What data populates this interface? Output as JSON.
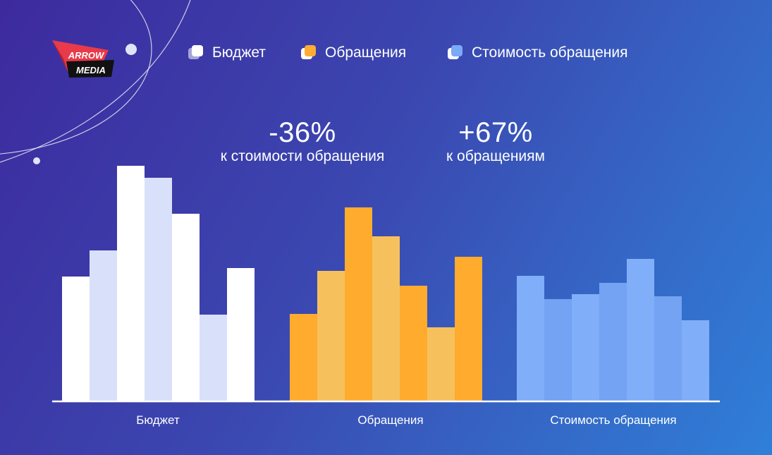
{
  "logo": {
    "line1": "ARROW",
    "line2": "MEDIA"
  },
  "legend": [
    {
      "label": "Бюджет",
      "icon": "budget-legend-icon",
      "color": "#ffffff"
    },
    {
      "label": "Обращения",
      "icon": "inquiries-legend-icon",
      "color": "#ffad33"
    },
    {
      "label": "Стоимость обращения",
      "icon": "cost-legend-icon",
      "color": "#7aaaf8"
    }
  ],
  "stats": [
    {
      "value": "-36%",
      "description": "к стоимости обращения"
    },
    {
      "value": "+67%",
      "description": "к обращениям"
    }
  ],
  "chart_data": {
    "type": "bar",
    "ylim": [
      0,
      340
    ],
    "grid": false,
    "legend_placement": "top",
    "groups": [
      {
        "name": "Бюджет",
        "colors": [
          "#ffffff",
          "#d9e0fa"
        ],
        "values": [
          177,
          214,
          334,
          317,
          266,
          123,
          189
        ]
      },
      {
        "name": "Обращения",
        "colors": [
          "#ffab2e",
          "#f6c15c"
        ],
        "values": [
          124,
          185,
          275,
          234,
          164,
          105,
          205
        ]
      },
      {
        "name": "Стоимость обращения",
        "colors": [
          "#80aef8",
          "#73a3f2"
        ],
        "values": [
          178,
          145,
          152,
          168,
          202,
          149,
          115
        ]
      }
    ]
  }
}
